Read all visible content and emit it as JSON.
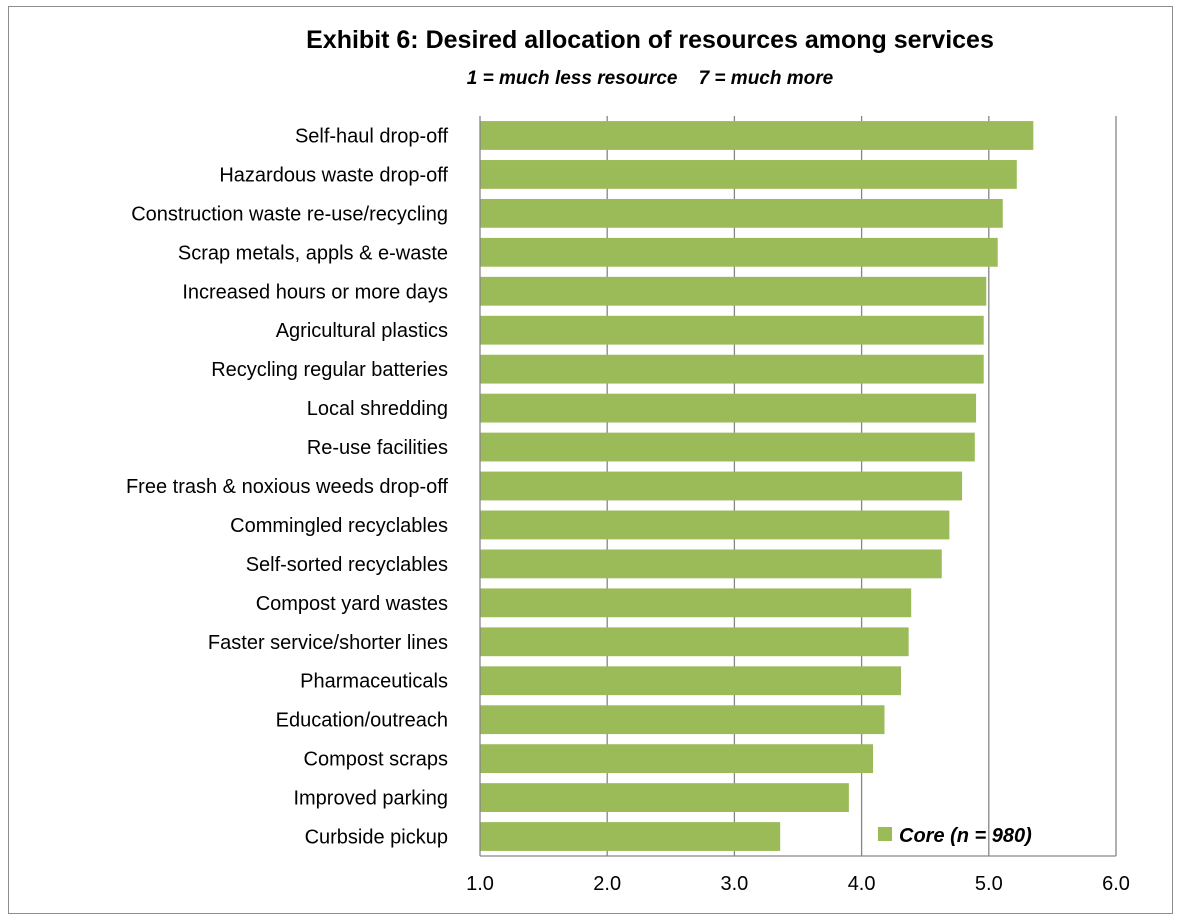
{
  "chart_data": {
    "type": "bar",
    "orientation": "horizontal",
    "title": "Exhibit 6:  Desired allocation of resources among services",
    "subtitle": "1 = much less resource    7 = much more",
    "categories": [
      "Self-haul drop-off",
      "Hazardous waste drop-off",
      "Construction waste re-use/recycling",
      "Scrap metals, appls & e-waste",
      "Increased hours or more days",
      "Agricultural plastics",
      "Recycling regular batteries",
      "Local shredding",
      "Re-use facilities",
      "Free trash & noxious weeds drop-off",
      "Commingled recyclables",
      "Self-sorted recyclables",
      "Compost yard wastes",
      "Faster service/shorter lines",
      "Pharmaceuticals",
      "Education/outreach",
      "Compost scraps",
      "Improved parking",
      "Curbside pickup"
    ],
    "series": [
      {
        "name": "Core (n = 980)",
        "color": "#9bbb59",
        "values": [
          5.35,
          5.22,
          5.11,
          5.07,
          4.98,
          4.96,
          4.96,
          4.9,
          4.89,
          4.79,
          4.69,
          4.63,
          4.39,
          4.37,
          4.31,
          4.18,
          4.09,
          3.9,
          3.36
        ]
      }
    ],
    "xlim": [
      1.0,
      6.0
    ],
    "ticks": [
      "1.0",
      "2.0",
      "3.0",
      "4.0",
      "5.0",
      "6.0"
    ],
    "grid": true,
    "legend": "bottom-right"
  }
}
